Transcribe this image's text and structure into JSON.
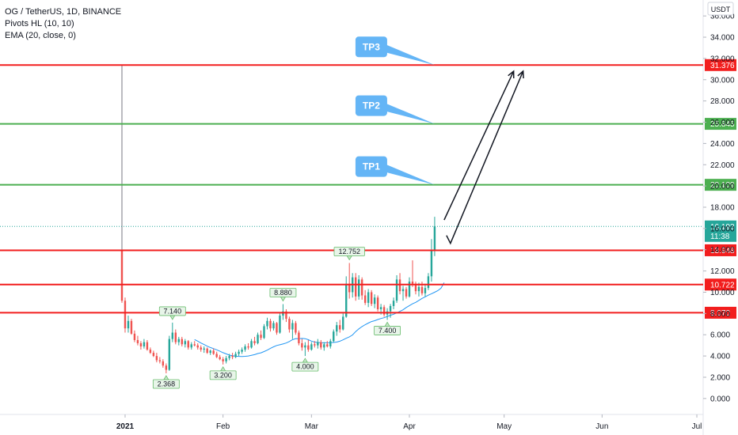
{
  "legend": {
    "symbol": "OG / TetherUS, 1D, BINANCE",
    "pivots": "Pivots HL (10, 10)",
    "ema": "EMA (20, close, 0)"
  },
  "colors": {
    "up": "#26a69a",
    "down": "#ef5350",
    "ema": "#2196f3",
    "red_line": "#f21e1e",
    "green_line": "#4caf50",
    "tp_callout": "#64b5f6"
  },
  "chart_data": {
    "type": "candlestick",
    "symbol": "OG / TetherUS",
    "interval": "1D",
    "exchange": "BINANCE",
    "price_unit": "USDT",
    "ylim": [
      -1.5,
      37.5
    ],
    "y_ticks": [
      "0.000",
      "2.000",
      "4.000",
      "6.000",
      "8.000",
      "10.000",
      "12.000",
      "14.000",
      "16.000",
      "18.000",
      "20.000",
      "22.000",
      "24.000",
      "26.000",
      "28.000",
      "30.000",
      "32.000",
      "34.000",
      "36.000"
    ],
    "x_ticks": [
      {
        "label": "2021",
        "date": "2021-01-01",
        "bold": true
      },
      {
        "label": "Feb",
        "date": "2021-02-01",
        "bold": false
      },
      {
        "label": "Mar",
        "date": "2021-03-01",
        "bold": false
      },
      {
        "label": "Apr",
        "date": "2021-04-01",
        "bold": false
      },
      {
        "label": "May",
        "date": "2021-05-01",
        "bold": false
      },
      {
        "label": "Jun",
        "date": "2021-06-01",
        "bold": false
      },
      {
        "label": "Jul",
        "date": "2021-07-01",
        "bold": false
      }
    ],
    "x_range": [
      "2020-12-30",
      "2021-07-03"
    ],
    "listing_spike": {
      "date": "2020-12-31",
      "high": 31.4
    },
    "candles": [
      {
        "date": "2020-12-31",
        "o": 14.0,
        "h": 31.4,
        "l": 9.0,
        "c": 9.2
      },
      {
        "date": "2021-01-01",
        "o": 9.2,
        "h": 9.5,
        "l": 6.2,
        "c": 6.6
      },
      {
        "date": "2021-01-02",
        "o": 6.6,
        "h": 7.8,
        "l": 6.2,
        "c": 7.3
      },
      {
        "date": "2021-01-03",
        "o": 7.3,
        "h": 7.5,
        "l": 6.0,
        "c": 6.1
      },
      {
        "date": "2021-01-04",
        "o": 6.1,
        "h": 6.4,
        "l": 5.3,
        "c": 5.5
      },
      {
        "date": "2021-01-05",
        "o": 5.5,
        "h": 5.9,
        "l": 5.0,
        "c": 5.2
      },
      {
        "date": "2021-01-06",
        "o": 5.2,
        "h": 5.4,
        "l": 4.6,
        "c": 4.9
      },
      {
        "date": "2021-01-07",
        "o": 4.9,
        "h": 5.6,
        "l": 4.7,
        "c": 5.3
      },
      {
        "date": "2021-01-08",
        "o": 5.3,
        "h": 5.5,
        "l": 4.5,
        "c": 4.6
      },
      {
        "date": "2021-01-09",
        "o": 4.6,
        "h": 4.8,
        "l": 4.2,
        "c": 4.3
      },
      {
        "date": "2021-01-10",
        "o": 4.3,
        "h": 4.5,
        "l": 3.9,
        "c": 4.0
      },
      {
        "date": "2021-01-11",
        "o": 4.0,
        "h": 4.3,
        "l": 3.4,
        "c": 3.6
      },
      {
        "date": "2021-01-12",
        "o": 3.6,
        "h": 3.9,
        "l": 3.3,
        "c": 3.5
      },
      {
        "date": "2021-01-13",
        "o": 3.5,
        "h": 3.7,
        "l": 2.9,
        "c": 3.1
      },
      {
        "date": "2021-01-14",
        "o": 3.1,
        "h": 3.3,
        "l": 2.37,
        "c": 2.7
      },
      {
        "date": "2021-01-15",
        "o": 2.7,
        "h": 5.9,
        "l": 2.6,
        "c": 5.6
      },
      {
        "date": "2021-01-16",
        "o": 5.6,
        "h": 7.14,
        "l": 5.3,
        "c": 6.2
      },
      {
        "date": "2021-01-17",
        "o": 6.2,
        "h": 6.5,
        "l": 5.1,
        "c": 5.3
      },
      {
        "date": "2021-01-18",
        "o": 5.3,
        "h": 5.8,
        "l": 5.0,
        "c": 5.6
      },
      {
        "date": "2021-01-19",
        "o": 5.6,
        "h": 5.8,
        "l": 4.9,
        "c": 5.1
      },
      {
        "date": "2021-01-20",
        "o": 5.1,
        "h": 5.6,
        "l": 4.8,
        "c": 5.4
      },
      {
        "date": "2021-01-21",
        "o": 5.4,
        "h": 5.5,
        "l": 4.6,
        "c": 4.8
      },
      {
        "date": "2021-01-22",
        "o": 4.8,
        "h": 5.3,
        "l": 4.6,
        "c": 5.1
      },
      {
        "date": "2021-01-23",
        "o": 5.1,
        "h": 5.4,
        "l": 4.9,
        "c": 5.0
      },
      {
        "date": "2021-01-24",
        "o": 5.0,
        "h": 5.2,
        "l": 4.6,
        "c": 4.8
      },
      {
        "date": "2021-01-25",
        "o": 4.8,
        "h": 5.0,
        "l": 4.4,
        "c": 4.6
      },
      {
        "date": "2021-01-26",
        "o": 4.6,
        "h": 4.9,
        "l": 4.3,
        "c": 4.7
      },
      {
        "date": "2021-01-27",
        "o": 4.7,
        "h": 4.8,
        "l": 4.2,
        "c": 4.3
      },
      {
        "date": "2021-01-28",
        "o": 4.3,
        "h": 4.6,
        "l": 4.1,
        "c": 4.5
      },
      {
        "date": "2021-01-29",
        "o": 4.5,
        "h": 4.7,
        "l": 4.1,
        "c": 4.2
      },
      {
        "date": "2021-01-30",
        "o": 4.2,
        "h": 4.4,
        "l": 3.8,
        "c": 3.9
      },
      {
        "date": "2021-01-31",
        "o": 3.9,
        "h": 4.1,
        "l": 3.6,
        "c": 3.7
      },
      {
        "date": "2021-02-01",
        "o": 3.7,
        "h": 3.9,
        "l": 3.2,
        "c": 3.5
      },
      {
        "date": "2021-02-02",
        "o": 3.5,
        "h": 4.0,
        "l": 3.3,
        "c": 3.8
      },
      {
        "date": "2021-02-03",
        "o": 3.8,
        "h": 4.2,
        "l": 3.6,
        "c": 4.0
      },
      {
        "date": "2021-02-04",
        "o": 4.0,
        "h": 4.3,
        "l": 3.7,
        "c": 3.9
      },
      {
        "date": "2021-02-05",
        "o": 3.9,
        "h": 4.4,
        "l": 3.8,
        "c": 4.2
      },
      {
        "date": "2021-02-06",
        "o": 4.2,
        "h": 4.6,
        "l": 4.0,
        "c": 4.4
      },
      {
        "date": "2021-02-07",
        "o": 4.4,
        "h": 4.8,
        "l": 4.2,
        "c": 4.6
      },
      {
        "date": "2021-02-08",
        "o": 4.6,
        "h": 5.1,
        "l": 4.4,
        "c": 4.9
      },
      {
        "date": "2021-02-09",
        "o": 4.9,
        "h": 5.2,
        "l": 4.6,
        "c": 4.8
      },
      {
        "date": "2021-02-10",
        "o": 4.8,
        "h": 5.6,
        "l": 4.7,
        "c": 5.4
      },
      {
        "date": "2021-02-11",
        "o": 5.4,
        "h": 5.8,
        "l": 5.0,
        "c": 5.2
      },
      {
        "date": "2021-02-12",
        "o": 5.2,
        "h": 6.2,
        "l": 5.1,
        "c": 6.0
      },
      {
        "date": "2021-02-13",
        "o": 6.0,
        "h": 6.4,
        "l": 5.5,
        "c": 5.7
      },
      {
        "date": "2021-02-14",
        "o": 5.7,
        "h": 7.0,
        "l": 5.6,
        "c": 6.8
      },
      {
        "date": "2021-02-15",
        "o": 6.8,
        "h": 7.6,
        "l": 6.5,
        "c": 7.3
      },
      {
        "date": "2021-02-16",
        "o": 7.3,
        "h": 7.5,
        "l": 6.3,
        "c": 6.6
      },
      {
        "date": "2021-02-17",
        "o": 6.6,
        "h": 7.3,
        "l": 6.4,
        "c": 7.1
      },
      {
        "date": "2021-02-18",
        "o": 7.1,
        "h": 7.2,
        "l": 6.0,
        "c": 6.2
      },
      {
        "date": "2021-02-19",
        "o": 6.2,
        "h": 8.0,
        "l": 6.1,
        "c": 7.8
      },
      {
        "date": "2021-02-20",
        "o": 7.8,
        "h": 8.88,
        "l": 7.4,
        "c": 8.2
      },
      {
        "date": "2021-02-21",
        "o": 8.2,
        "h": 8.4,
        "l": 7.2,
        "c": 7.5
      },
      {
        "date": "2021-02-22",
        "o": 7.5,
        "h": 7.7,
        "l": 6.2,
        "c": 6.5
      },
      {
        "date": "2021-02-23",
        "o": 6.5,
        "h": 7.4,
        "l": 5.6,
        "c": 7.1
      },
      {
        "date": "2021-02-24",
        "o": 7.1,
        "h": 7.3,
        "l": 6.0,
        "c": 6.2
      },
      {
        "date": "2021-02-25",
        "o": 6.2,
        "h": 6.4,
        "l": 5.0,
        "c": 5.2
      },
      {
        "date": "2021-02-26",
        "o": 5.2,
        "h": 5.6,
        "l": 4.5,
        "c": 4.8
      },
      {
        "date": "2021-02-27",
        "o": 4.8,
        "h": 5.3,
        "l": 4.0,
        "c": 5.0
      },
      {
        "date": "2021-02-28",
        "o": 5.0,
        "h": 5.5,
        "l": 4.4,
        "c": 4.6
      },
      {
        "date": "2021-03-01",
        "o": 4.6,
        "h": 5.3,
        "l": 4.5,
        "c": 5.1
      },
      {
        "date": "2021-03-02",
        "o": 5.1,
        "h": 5.4,
        "l": 4.8,
        "c": 5.0
      },
      {
        "date": "2021-03-03",
        "o": 5.0,
        "h": 5.6,
        "l": 4.7,
        "c": 5.3
      },
      {
        "date": "2021-03-04",
        "o": 5.3,
        "h": 5.5,
        "l": 4.6,
        "c": 4.8
      },
      {
        "date": "2021-03-05",
        "o": 4.8,
        "h": 5.3,
        "l": 4.5,
        "c": 5.1
      },
      {
        "date": "2021-03-06",
        "o": 5.1,
        "h": 5.4,
        "l": 4.8,
        "c": 4.9
      },
      {
        "date": "2021-03-07",
        "o": 4.9,
        "h": 5.6,
        "l": 4.7,
        "c": 5.4
      },
      {
        "date": "2021-03-08",
        "o": 5.4,
        "h": 6.5,
        "l": 5.3,
        "c": 6.3
      },
      {
        "date": "2021-03-09",
        "o": 6.3,
        "h": 7.2,
        "l": 5.9,
        "c": 6.9
      },
      {
        "date": "2021-03-10",
        "o": 6.9,
        "h": 7.4,
        "l": 6.2,
        "c": 6.5
      },
      {
        "date": "2021-03-11",
        "o": 6.5,
        "h": 8.0,
        "l": 6.4,
        "c": 7.7
      },
      {
        "date": "2021-03-12",
        "o": 7.7,
        "h": 11.5,
        "l": 7.6,
        "c": 10.8
      },
      {
        "date": "2021-03-13",
        "o": 10.8,
        "h": 12.752,
        "l": 9.4,
        "c": 10.0
      },
      {
        "date": "2021-03-14",
        "o": 10.0,
        "h": 11.8,
        "l": 9.5,
        "c": 11.4
      },
      {
        "date": "2021-03-15",
        "o": 11.4,
        "h": 11.8,
        "l": 9.2,
        "c": 9.6
      },
      {
        "date": "2021-03-16",
        "o": 9.6,
        "h": 11.6,
        "l": 9.3,
        "c": 11.2
      },
      {
        "date": "2021-03-17",
        "o": 11.2,
        "h": 11.4,
        "l": 9.3,
        "c": 9.7
      },
      {
        "date": "2021-03-18",
        "o": 9.7,
        "h": 10.2,
        "l": 8.8,
        "c": 9.0
      },
      {
        "date": "2021-03-19",
        "o": 9.0,
        "h": 10.3,
        "l": 8.6,
        "c": 10.0
      },
      {
        "date": "2021-03-20",
        "o": 10.0,
        "h": 10.2,
        "l": 8.7,
        "c": 8.9
      },
      {
        "date": "2021-03-21",
        "o": 8.9,
        "h": 9.8,
        "l": 8.5,
        "c": 9.5
      },
      {
        "date": "2021-03-22",
        "o": 9.5,
        "h": 9.7,
        "l": 8.2,
        "c": 8.4
      },
      {
        "date": "2021-03-23",
        "o": 8.4,
        "h": 8.9,
        "l": 7.9,
        "c": 8.6
      },
      {
        "date": "2021-03-24",
        "o": 8.6,
        "h": 8.8,
        "l": 7.7,
        "c": 7.9
      },
      {
        "date": "2021-03-25",
        "o": 7.9,
        "h": 8.5,
        "l": 7.4,
        "c": 8.2
      },
      {
        "date": "2021-03-26",
        "o": 8.2,
        "h": 8.9,
        "l": 7.6,
        "c": 8.7
      },
      {
        "date": "2021-03-27",
        "o": 8.7,
        "h": 9.5,
        "l": 8.4,
        "c": 9.2
      },
      {
        "date": "2021-03-28",
        "o": 9.2,
        "h": 11.6,
        "l": 9.0,
        "c": 11.2
      },
      {
        "date": "2021-03-29",
        "o": 11.2,
        "h": 11.8,
        "l": 9.8,
        "c": 10.1
      },
      {
        "date": "2021-03-30",
        "o": 10.1,
        "h": 10.6,
        "l": 9.2,
        "c": 10.3
      },
      {
        "date": "2021-03-31",
        "o": 10.3,
        "h": 10.5,
        "l": 9.4,
        "c": 9.6
      },
      {
        "date": "2021-04-01",
        "o": 9.6,
        "h": 11.4,
        "l": 9.5,
        "c": 11.0
      },
      {
        "date": "2021-04-02",
        "o": 11.0,
        "h": 13.0,
        "l": 10.5,
        "c": 10.8
      },
      {
        "date": "2021-04-03",
        "o": 10.8,
        "h": 11.0,
        "l": 9.8,
        "c": 10.1
      },
      {
        "date": "2021-04-04",
        "o": 10.1,
        "h": 10.9,
        "l": 9.6,
        "c": 10.5
      },
      {
        "date": "2021-04-05",
        "o": 10.5,
        "h": 11.0,
        "l": 9.7,
        "c": 9.9
      },
      {
        "date": "2021-04-06",
        "o": 9.9,
        "h": 10.8,
        "l": 9.6,
        "c": 10.4
      },
      {
        "date": "2021-04-07",
        "o": 10.4,
        "h": 11.8,
        "l": 10.2,
        "c": 11.5
      },
      {
        "date": "2021-04-08",
        "o": 11.5,
        "h": 15.0,
        "l": 11.0,
        "c": 13.9
      },
      {
        "date": "2021-04-09",
        "o": 13.9,
        "h": 17.1,
        "l": 13.4,
        "c": 16.193
      }
    ],
    "ema": {
      "name": "EMA (20, close, 0)",
      "start": "2021-01-23",
      "values": [
        5.55,
        5.4,
        5.22,
        5.08,
        4.92,
        4.8,
        4.69,
        4.58,
        4.45,
        4.31,
        4.2,
        4.08,
        4.02,
        3.98,
        3.96,
        3.95,
        3.97,
        4.0,
        4.06,
        4.13,
        4.23,
        4.3,
        4.42,
        4.55,
        4.72,
        4.86,
        4.99,
        5.06,
        5.13,
        5.22,
        5.36,
        5.53,
        5.64,
        5.62,
        5.65,
        5.63,
        5.53,
        5.4,
        5.31,
        5.27,
        5.25,
        5.24,
        5.24,
        5.25,
        5.27,
        5.31,
        5.39,
        5.52,
        5.67,
        5.8,
        5.98,
        6.3,
        6.55,
        6.77,
        6.95,
        7.1,
        7.24,
        7.32,
        7.43,
        7.53,
        7.6,
        7.72,
        7.83,
        7.93,
        8.06,
        8.2,
        8.35,
        8.56,
        8.74,
        8.91,
        9.05,
        9.23,
        9.42,
        9.57,
        9.72,
        9.86,
        10.0,
        10.15,
        10.38,
        10.9
      ]
    },
    "pivots": [
      {
        "date": "2021-01-14",
        "value": 2.368,
        "label": "2.368",
        "kind": "low"
      },
      {
        "date": "2021-01-16",
        "value": 7.14,
        "label": "7.140",
        "kind": "high"
      },
      {
        "date": "2021-02-01",
        "value": 3.2,
        "label": "3.200",
        "kind": "low"
      },
      {
        "date": "2021-02-20",
        "value": 8.88,
        "label": "8.880",
        "kind": "high"
      },
      {
        "date": "2021-02-27",
        "value": 4.0,
        "label": "4.000",
        "kind": "low"
      },
      {
        "date": "2021-03-13",
        "value": 12.752,
        "label": "12.752",
        "kind": "high"
      },
      {
        "date": "2021-03-25",
        "value": 7.4,
        "label": "7.400",
        "kind": "low"
      }
    ],
    "horizontal_lines": [
      {
        "value": 31.376,
        "label": "31.376",
        "color": "red"
      },
      {
        "value": 25.845,
        "label": "25.845",
        "color": "green"
      },
      {
        "value": 20.109,
        "label": "20.109",
        "color": "green"
      },
      {
        "value": 13.948,
        "label": "13.948",
        "color": "red"
      },
      {
        "value": 10.722,
        "label": "10.722",
        "color": "red"
      },
      {
        "value": 8.07,
        "label": "8.070",
        "color": "red"
      }
    ],
    "last_price": {
      "value": 16.193,
      "label": "16.193",
      "countdown": "11:38"
    },
    "targets": [
      {
        "label": "TP3",
        "value": 31.376,
        "pointer_date": "2021-04-09"
      },
      {
        "label": "TP2",
        "value": 25.845,
        "pointer_date": "2021-04-09"
      },
      {
        "label": "TP1",
        "value": 20.109,
        "pointer_date": "2021-04-09"
      }
    ],
    "projection_arrow": {
      "path": [
        {
          "date": "2021-04-12",
          "value": 16.8
        },
        {
          "date": "2021-05-04",
          "value": 30.8
        },
        {
          "date": "2021-05-07",
          "value": 30.8
        },
        {
          "date": "2021-04-14",
          "value": 14.6
        }
      ]
    }
  }
}
